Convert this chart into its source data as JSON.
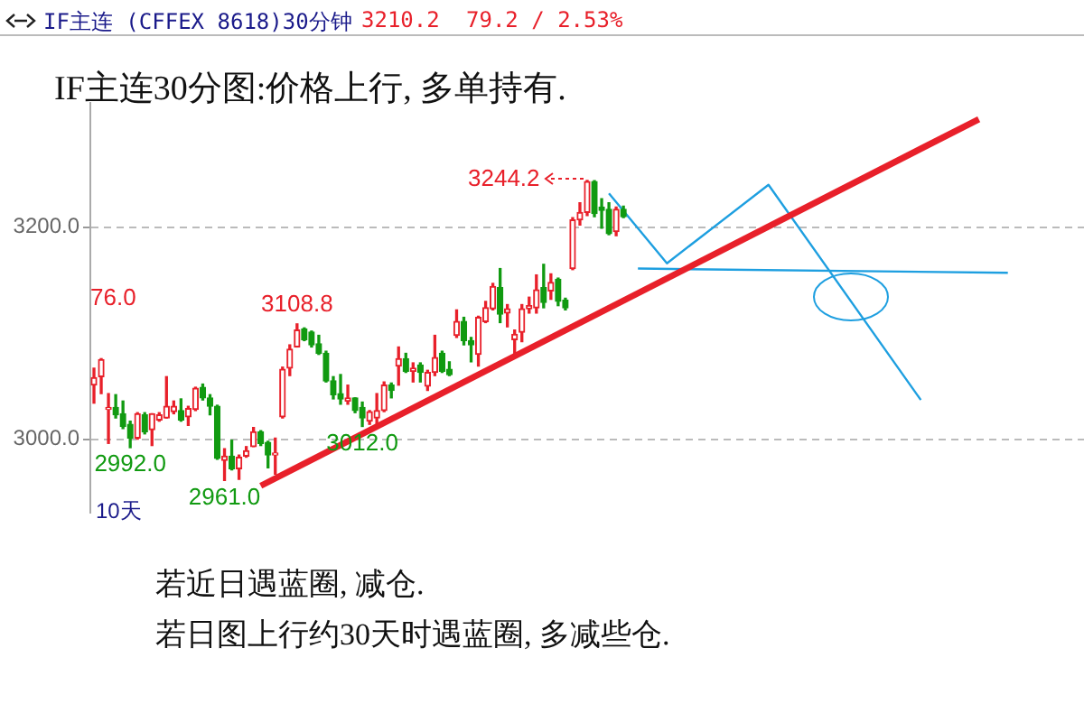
{
  "chart_data": {
    "type": "candlestick",
    "title": "IF主连30分图:价格上行, 多单持有.",
    "subtitle": "IF主连  (CFFEX 8618)30分钟",
    "categories": [
      null,
      null,
      null,
      null,
      null,
      null,
      null,
      null,
      null,
      null,
      null,
      null,
      null,
      null,
      null,
      null,
      null,
      null,
      null,
      null,
      null,
      null,
      null,
      null,
      null,
      null,
      null,
      null,
      null,
      null,
      null,
      null,
      null,
      null,
      null,
      null,
      null,
      null,
      null,
      null,
      null,
      null,
      null,
      null,
      null,
      null,
      null,
      null,
      null,
      null,
      null,
      null,
      null,
      null,
      null,
      null,
      null,
      null,
      null,
      null,
      null,
      null,
      null,
      null,
      null,
      null,
      null,
      null,
      null,
      null,
      null,
      null,
      null,
      null,
      null,
      null,
      null,
      null,
      null,
      null,
      null,
      null,
      null,
      null,
      null,
      null,
      null,
      null,
      null,
      null,
      null,
      null,
      null,
      null,
      null,
      null,
      null,
      null,
      null,
      null,
      null,
      null,
      null,
      null,
      null,
      null,
      null,
      null,
      null,
      null,
      null,
      null,
      null,
      null,
      null,
      null,
      null,
      null,
      null,
      null,
      null,
      null,
      null,
      null,
      null,
      null,
      null,
      null,
      null,
      null,
      null,
      null,
      null,
      null,
      null,
      null,
      null
    ],
    "ohlc": [
      [
        3051,
        3067,
        3034,
        3058
      ],
      [
        3059,
        3076,
        3043,
        3075
      ],
      [
        3028,
        3043,
        2996,
        3030
      ],
      [
        3030,
        3042,
        3020,
        3023
      ],
      [
        3024,
        3036,
        3010,
        3012
      ],
      [
        3014,
        3017,
        2992,
        3001
      ],
      [
        3001,
        3025,
        3000,
        3024
      ],
      [
        3023,
        3025,
        3005,
        3007
      ],
      [
        3009,
        3024,
        2994,
        3024
      ],
      [
        3018,
        3025,
        3017,
        3023
      ],
      [
        3020,
        3059,
        3020,
        3031
      ],
      [
        3026,
        3036,
        3024,
        3031
      ],
      [
        3027,
        3038,
        3017,
        3018
      ],
      [
        3021,
        3031,
        3013,
        3029
      ],
      [
        3028,
        3049,
        3027,
        3048
      ],
      [
        3049,
        3052,
        3037,
        3039
      ],
      [
        3039,
        3042,
        3023,
        3031
      ],
      [
        3031,
        3032,
        2981,
        2982
      ],
      [
        2980,
        2991,
        2961,
        2984
      ],
      [
        2984,
        2999,
        2971,
        2972
      ],
      [
        2972,
        2985,
        2962,
        2983
      ],
      [
        2984,
        2993,
        2983,
        2989
      ],
      [
        2993,
        3011,
        2993,
        3007
      ],
      [
        3007,
        3008,
        2994,
        2996
      ],
      [
        2997,
        2998,
        2973,
        2985
      ],
      [
        2985,
        3001,
        2967,
        2987
      ],
      [
        3021,
        3068,
        3020,
        3066
      ],
      [
        3067,
        3089,
        3060,
        3085
      ],
      [
        3087,
        3108.8,
        3087,
        3103
      ],
      [
        3104,
        3105,
        3093,
        3094
      ],
      [
        3101,
        3102,
        3087,
        3089
      ],
      [
        3090,
        3098,
        3080,
        3081
      ],
      [
        3081,
        3083,
        3054,
        3055
      ],
      [
        3055,
        3059,
        3038,
        3042
      ],
      [
        3043,
        3061,
        3033,
        3038
      ],
      [
        3036,
        3051,
        3033,
        3039
      ],
      [
        3039,
        3039,
        3025,
        3027
      ],
      [
        3030,
        3035,
        3012,
        3020
      ],
      [
        3017,
        3027,
        3014,
        3026
      ],
      [
        3020,
        3043,
        3014,
        3027
      ],
      [
        3027,
        3054,
        3026,
        3051
      ],
      [
        3051,
        3053,
        3039,
        3046
      ],
      [
        3069,
        3087,
        3051,
        3076
      ],
      [
        3076,
        3081,
        3063,
        3064
      ],
      [
        3064,
        3072,
        3054,
        3067
      ],
      [
        3070,
        3072,
        3054,
        3063
      ],
      [
        3050,
        3065,
        3046,
        3063
      ],
      [
        3063,
        3098,
        3060,
        3077
      ],
      [
        3081,
        3083,
        3063,
        3064
      ],
      [
        3066,
        3073,
        3060,
        3061
      ],
      [
        3098,
        3122,
        3096,
        3111
      ],
      [
        3111,
        3115,
        3089,
        3093
      ],
      [
        3093,
        3096,
        3073,
        3089
      ],
      [
        3080,
        3116,
        3069,
        3115
      ],
      [
        3111,
        3130,
        3110,
        3124
      ],
      [
        3123,
        3147,
        3122,
        3144
      ],
      [
        3143,
        3161,
        3110,
        3118
      ],
      [
        3119,
        3127,
        3106,
        3123
      ],
      [
        3094,
        3103,
        3081,
        3099
      ],
      [
        3101,
        3127,
        3092,
        3123
      ],
      [
        3123,
        3134,
        3119,
        3126
      ],
      [
        3124,
        3155,
        3119,
        3141
      ],
      [
        3143,
        3165,
        3124,
        3129
      ],
      [
        3140,
        3156,
        3132,
        3148
      ],
      [
        3151,
        3152,
        3126,
        3130
      ],
      [
        3131,
        3133,
        3122,
        3124
      ],
      [
        3161,
        3209,
        3160,
        3207
      ],
      [
        3207,
        3223,
        3202,
        3214
      ],
      [
        3214,
        3244.2,
        3211,
        3243
      ],
      [
        3243,
        3244,
        3210,
        3213
      ],
      [
        3219,
        3227,
        3199,
        3216
      ],
      [
        3217,
        3223,
        3193,
        3194
      ],
      [
        3196,
        3219,
        3192,
        3217
      ],
      [
        3217,
        3220,
        3209,
        3210
      ],
      null,
      null,
      null,
      null,
      null,
      null,
      null,
      null,
      null,
      null,
      null,
      null,
      null,
      null,
      null,
      null,
      null,
      null,
      null,
      null,
      null,
      null,
      null,
      null,
      null,
      null,
      null,
      null,
      null,
      null,
      null,
      null,
      null,
      null,
      null,
      null,
      null,
      null,
      null,
      null,
      null,
      null,
      null,
      null,
      null,
      null,
      null,
      null,
      null,
      null,
      null,
      null,
      null,
      null,
      null,
      null,
      null,
      null,
      null,
      null,
      null,
      null,
      null
    ],
    "colors": [
      "#e8202a",
      "#e8202a",
      "#e8202a",
      "#119a11",
      "#119a11",
      "#119a11",
      "#e8202a",
      "#119a11",
      "#e8202a",
      "#e8202a",
      "#e8202a",
      "#e8202a",
      "#119a11",
      "#e8202a",
      "#e8202a",
      "#119a11",
      "#119a11",
      "#119a11",
      "#e8202a",
      "#119a11",
      "#e8202a",
      "#e8202a",
      "#e8202a",
      "#119a11",
      "#119a11",
      "#e8202a",
      "#e8202a",
      "#e8202a",
      "#e8202a",
      "#119a11",
      "#119a11",
      "#119a11",
      "#119a11",
      "#119a11",
      "#119a11",
      "#e8202a",
      "#119a11",
      "#119a11",
      "#e8202a",
      "#e8202a",
      "#e8202a",
      "#119a11",
      "#e8202a",
      "#119a11",
      "#e8202a",
      "#119a11",
      "#e8202a",
      "#e8202a",
      "#119a11",
      "#119a11",
      "#e8202a",
      "#119a11",
      "#119a11",
      "#e8202a",
      "#e8202a",
      "#e8202a",
      "#119a11",
      "#e8202a",
      "#e8202a",
      "#e8202a",
      "#e8202a",
      "#e8202a",
      "#119a11",
      "#e8202a",
      "#119a11",
      "#119a11",
      "#e8202a",
      "#e8202a",
      "#e8202a",
      "#119a11",
      "#119a11",
      "#119a11",
      "#e8202a",
      "#119a11",
      null,
      null,
      null,
      null,
      null,
      null,
      null,
      null,
      null,
      null,
      null,
      null,
      null,
      null,
      null,
      null,
      null,
      null,
      null,
      null,
      null,
      null,
      null,
      null,
      null,
      null,
      null,
      null,
      null,
      null,
      null,
      null,
      null,
      null,
      null,
      null,
      null,
      null,
      null,
      null,
      null,
      null,
      null,
      null,
      null,
      null,
      null,
      null,
      null,
      null,
      null,
      null,
      null,
      null,
      null,
      null,
      null,
      null,
      null,
      null,
      null,
      null,
      null
    ],
    "series": [
      {
        "type": "line",
        "color": "#e8202a",
        "values": [
          null,
          null,
          null,
          null,
          null,
          null,
          null,
          null,
          null,
          null,
          null,
          null,
          null,
          null,
          null,
          null,
          null,
          null,
          null,
          null,
          null,
          null,
          null,
          2956,
          null,
          null,
          null,
          null,
          null,
          null,
          null,
          null,
          null,
          null,
          null,
          null,
          null,
          null,
          null,
          null,
          null,
          null,
          null,
          null,
          null,
          null,
          null,
          null,
          null,
          null,
          null,
          null,
          null,
          null,
          null,
          null,
          null,
          null,
          null,
          null,
          null,
          null,
          null,
          null,
          null,
          null,
          null,
          null,
          null,
          null,
          null,
          null,
          null,
          null,
          null,
          null,
          null,
          null,
          null,
          null,
          null,
          null,
          null,
          null,
          null,
          null,
          null,
          null,
          null,
          null,
          null,
          null,
          null,
          null,
          null,
          null,
          null,
          null,
          null,
          null,
          null,
          null,
          null,
          null,
          null,
          null,
          null,
          null,
          null,
          null,
          null,
          null,
          null,
          null,
          null,
          null,
          null,
          null,
          null,
          null,
          null,
          null,
          3302,
          null,
          null,
          null,
          null,
          null,
          null,
          null,
          null,
          null,
          null,
          null,
          null,
          null,
          null
        ]
      },
      {
        "type": "line",
        "color": "#1e9fe0",
        "values": [
          null,
          null,
          null,
          null,
          null,
          null,
          null,
          null,
          null,
          null,
          null,
          null,
          null,
          null,
          null,
          null,
          null,
          null,
          null,
          null,
          null,
          null,
          null,
          null,
          null,
          null,
          null,
          null,
          null,
          null,
          null,
          null,
          null,
          null,
          null,
          null,
          null,
          null,
          null,
          null,
          null,
          null,
          null,
          null,
          null,
          null,
          null,
          null,
          null,
          null,
          null,
          null,
          null,
          null,
          null,
          null,
          null,
          null,
          null,
          null,
          null,
          null,
          null,
          null,
          null,
          null,
          null,
          null,
          null,
          null,
          null,
          3232,
          null,
          null,
          null,
          null,
          null,
          null,
          null,
          3166,
          null,
          null,
          null,
          null,
          null,
          null,
          null,
          null,
          null,
          null,
          null,
          null,
          null,
          3240,
          null,
          null,
          null,
          null,
          null,
          null,
          null,
          null,
          null,
          null,
          null,
          null,
          null,
          null,
          null,
          null,
          null,
          null,
          null,
          null,
          3037,
          null,
          null,
          null,
          null,
          null,
          null,
          null,
          null,
          null,
          null,
          null,
          null,
          null,
          null,
          null,
          null,
          null,
          null,
          null,
          null,
          null,
          null
        ]
      },
      {
        "type": "line",
        "color": "#1e9fe0",
        "values": [
          null,
          null,
          null,
          null,
          null,
          null,
          null,
          null,
          null,
          null,
          null,
          null,
          null,
          null,
          null,
          null,
          null,
          null,
          null,
          null,
          null,
          null,
          null,
          null,
          null,
          null,
          null,
          null,
          null,
          null,
          null,
          null,
          null,
          null,
          null,
          null,
          null,
          null,
          null,
          null,
          null,
          null,
          null,
          null,
          null,
          null,
          null,
          null,
          null,
          null,
          null,
          null,
          null,
          null,
          null,
          null,
          null,
          null,
          null,
          null,
          null,
          null,
          null,
          null,
          null,
          null,
          null,
          null,
          null,
          null,
          null,
          null,
          null,
          null,
          null,
          3161,
          null,
          null,
          null,
          null,
          null,
          null,
          null,
          null,
          null,
          null,
          null,
          null,
          null,
          null,
          null,
          null,
          null,
          null,
          null,
          null,
          null,
          null,
          null,
          null,
          null,
          null,
          null,
          null,
          null,
          null,
          null,
          null,
          null,
          null,
          null,
          null,
          null,
          null,
          null,
          null,
          null,
          null,
          null,
          null,
          null,
          null,
          null,
          null,
          null,
          null,
          3157,
          null,
          null,
          null,
          null,
          null,
          null,
          null,
          null,
          null,
          null
        ]
      }
    ],
    "ylim": [
      2931,
      3317
    ],
    "yticks": [
      {
        "value": 3000,
        "label": "3000.0"
      },
      {
        "value": 3200,
        "label": "3200.0"
      }
    ],
    "grid": "y",
    "legend": false,
    "tick_labels": "y",
    "annotations": [
      "76.0",
      {
        "text": "3108.8",
        "y": 3108.8
      },
      {
        "text": "2992.0",
        "y": 2992
      },
      {
        "text": "2961.0",
        "y": 2961
      },
      {
        "text": "3012.0",
        "y": 3012
      },
      "3244.2",
      "10天",
      "3210.2",
      "79.2 / 2.53%",
      "若近日遇蓝圈, 减仓.",
      "若日图上行约30天时遇蓝圈, 多减些仓."
    ]
  }
}
